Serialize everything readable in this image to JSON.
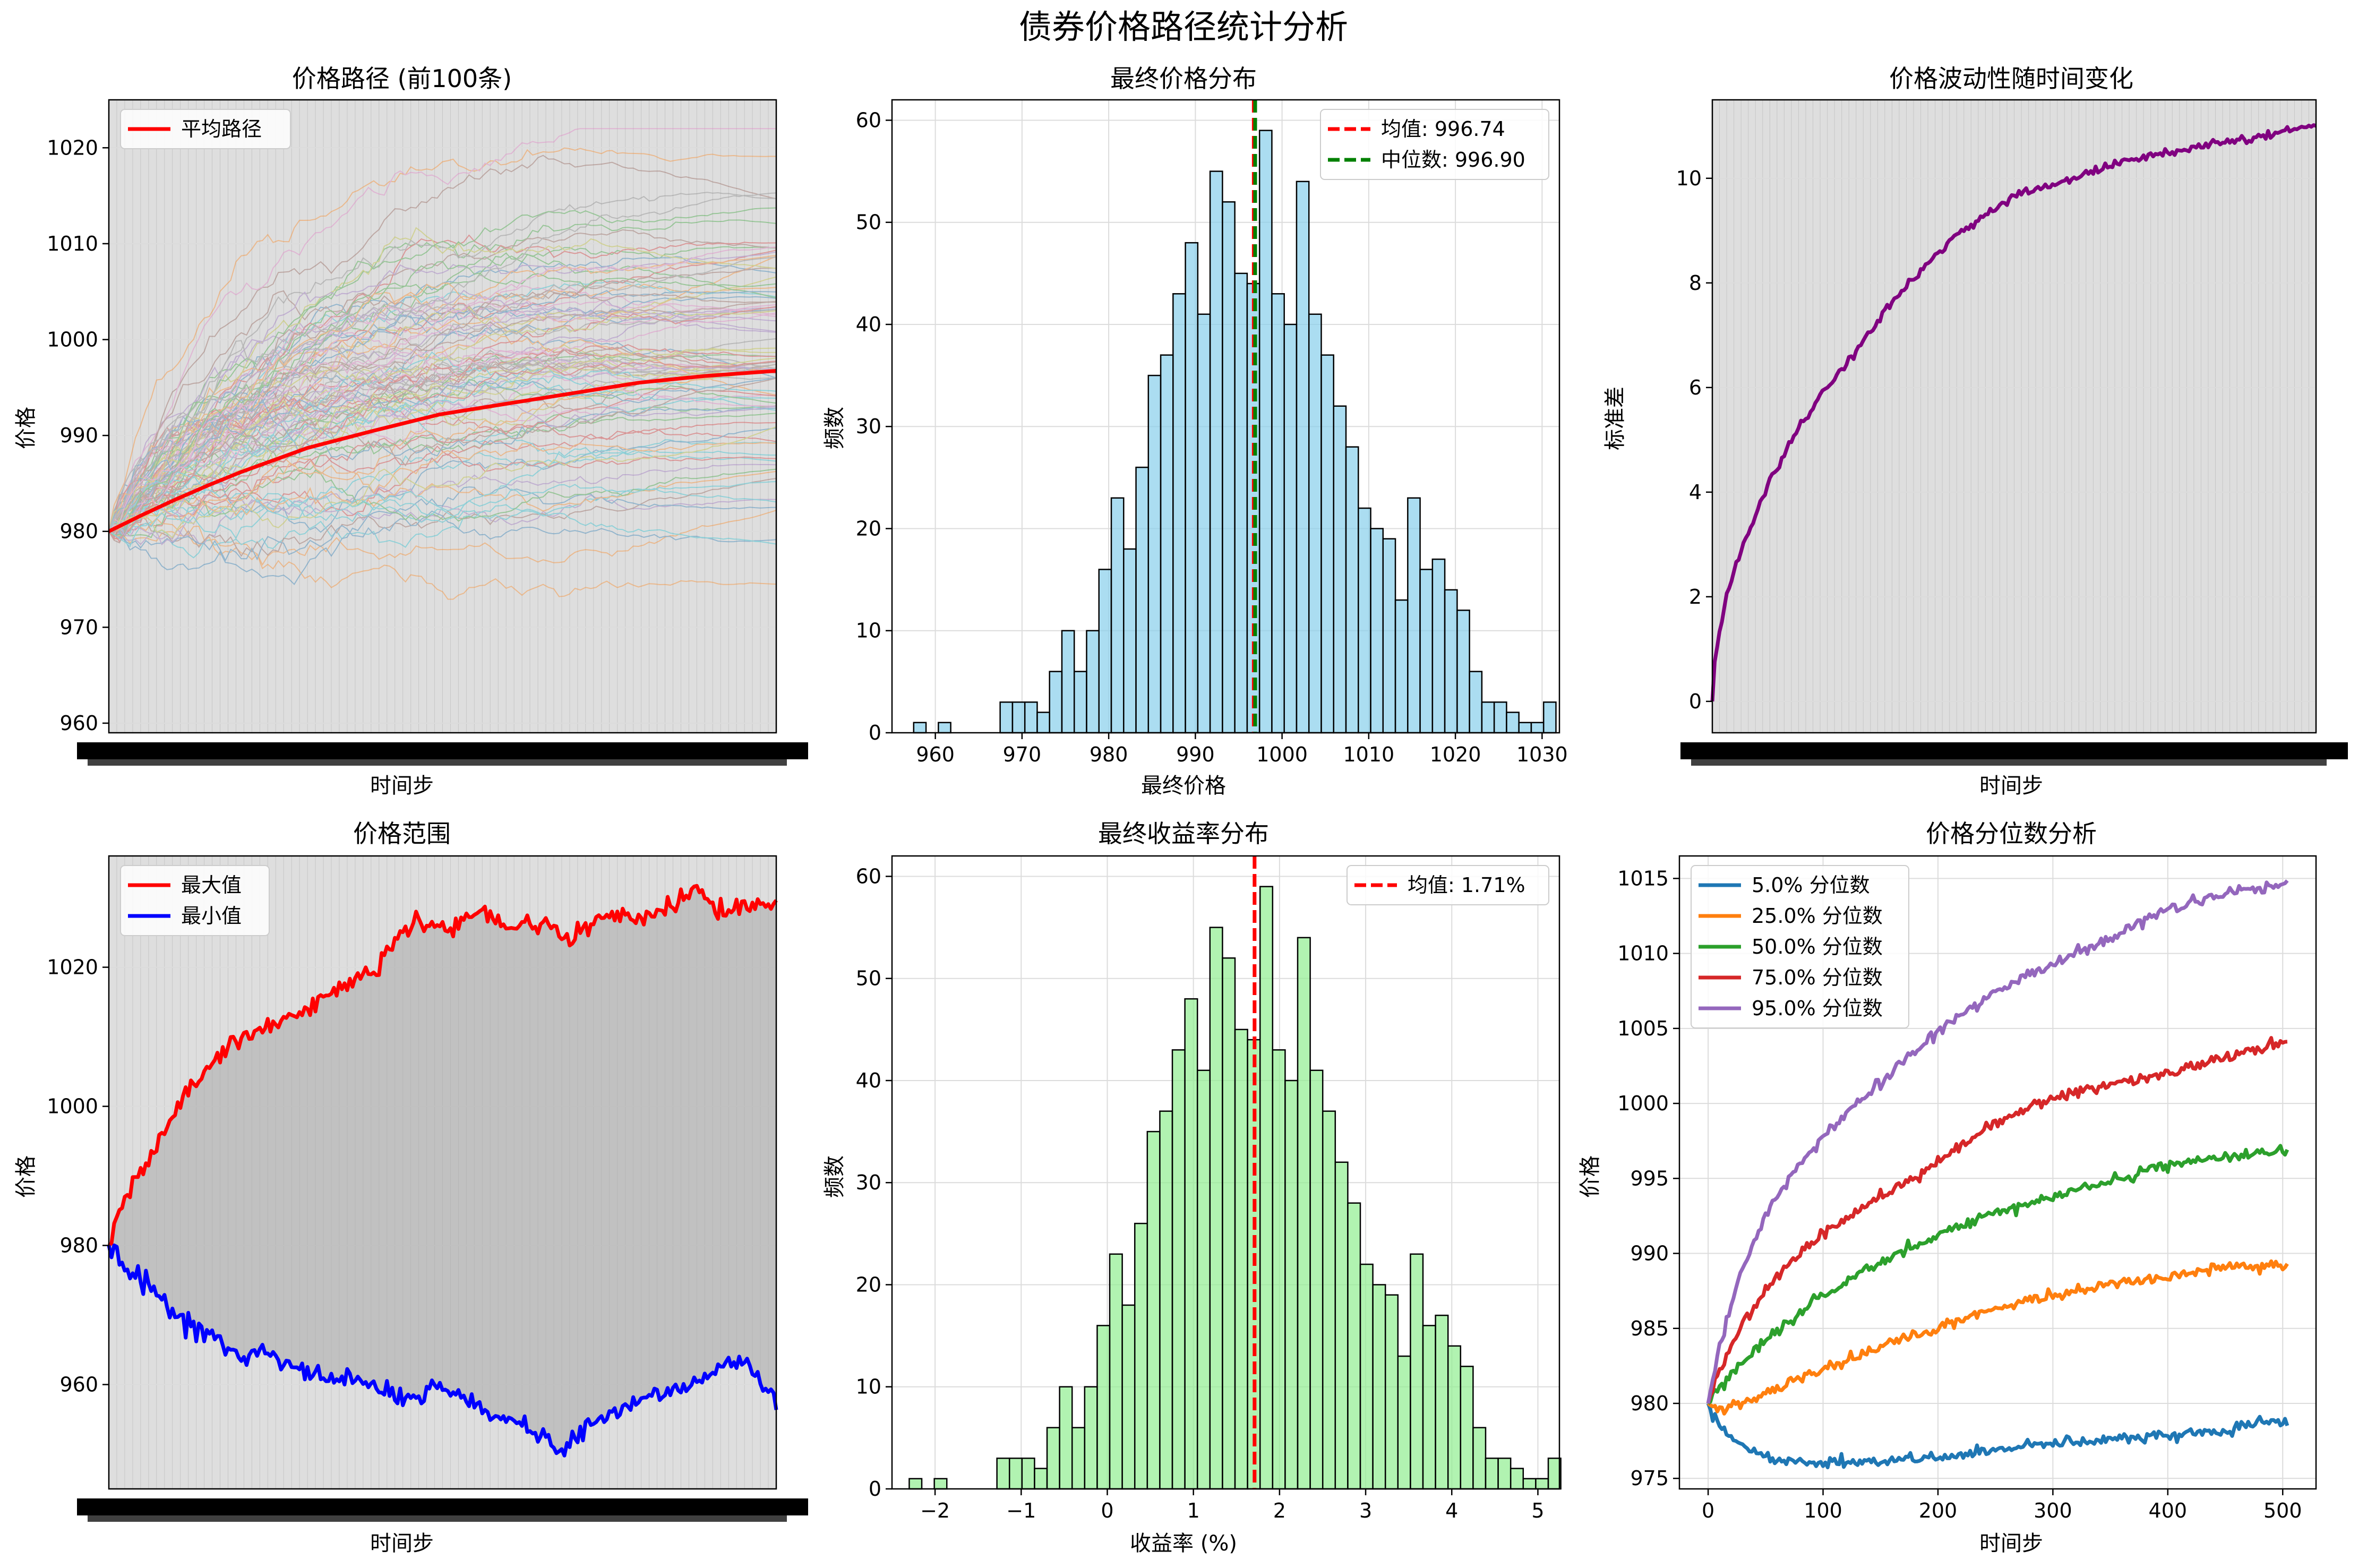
{
  "figure": {
    "title": "债券价格路径统计分析"
  },
  "chart_data": [
    {
      "id": "paths",
      "type": "line",
      "title": "价格路径 (前100条)",
      "xlabel": "时间步",
      "ylabel": "价格",
      "xlim": [
        0,
        504
      ],
      "ylim": [
        959,
        1025
      ],
      "yticks": [
        960,
        970,
        980,
        990,
        1000,
        1010,
        1020
      ],
      "x_tick_labels_overlapping": true,
      "grid": true,
      "legend": "top-left",
      "num_sample_paths": 100,
      "start_price": 980,
      "sample_path_final_range": [
        975,
        1023
      ],
      "sample_path_min_approx": 963,
      "sample_path_max_approx": 1021,
      "series": [
        {
          "name": "平均路径",
          "color": "#ff0000",
          "x": [
            0,
            25,
            50,
            75,
            100,
            150,
            200,
            250,
            300,
            350,
            400,
            450,
            504
          ],
          "values": [
            980,
            981.7,
            983.3,
            984.8,
            986.2,
            988.7,
            990.5,
            992.2,
            993.3,
            994.4,
            995.5,
            996.2,
            996.74
          ]
        }
      ]
    },
    {
      "id": "final-hist",
      "type": "bar",
      "title": "最终价格分布",
      "xlabel": "最终价格",
      "ylabel": "频数",
      "xlim": [
        955,
        1032
      ],
      "ylim": [
        0,
        62
      ],
      "xticks": [
        960,
        970,
        980,
        990,
        1000,
        1010,
        1020,
        1030
      ],
      "yticks": [
        0,
        10,
        20,
        30,
        40,
        50,
        60
      ],
      "grid": true,
      "legend": "top-right",
      "color": "#87ceeb",
      "bins": {
        "start": 957.5,
        "width": 1.425,
        "counts": [
          1,
          0,
          1,
          0,
          0,
          0,
          0,
          3,
          3,
          3,
          2,
          6,
          10,
          6,
          10,
          16,
          23,
          18,
          26,
          35,
          37,
          43,
          48,
          41,
          55,
          52,
          45,
          44,
          59,
          43,
          40,
          54,
          41,
          37,
          32,
          28,
          22,
          20,
          19,
          13,
          23,
          16,
          17,
          14,
          12,
          6,
          3,
          3,
          2,
          1,
          1,
          3
        ]
      },
      "annotations": [
        {
          "name": "均值: 996.74",
          "value": 996.74,
          "color": "#ff0000"
        },
        {
          "name": "中位数: 996.90",
          "value": 996.9,
          "color": "#008000"
        }
      ]
    },
    {
      "id": "volatility",
      "type": "line",
      "title": "价格波动性随时间变化",
      "xlabel": "时间步",
      "ylabel": "标准差",
      "xlim": [
        0,
        504
      ],
      "ylim": [
        -0.6,
        11.5
      ],
      "yticks": [
        0,
        2,
        4,
        6,
        8,
        10
      ],
      "x_tick_labels_overlapping": true,
      "grid": true,
      "series": [
        {
          "name": "",
          "color": "#800080",
          "x": [
            0,
            1,
            5,
            10,
            20,
            30,
            50,
            75,
            100,
            150,
            200,
            250,
            300,
            350,
            400,
            450,
            504
          ],
          "values": [
            0,
            0.55,
            1.25,
            1.8,
            2.6,
            3.25,
            4.3,
            5.35,
            6.1,
            7.65,
            8.85,
            9.65,
            10.0,
            10.35,
            10.6,
            10.75,
            11.05
          ]
        }
      ]
    },
    {
      "id": "range",
      "type": "area",
      "title": "价格范围",
      "xlabel": "时间步",
      "ylabel": "价格",
      "xlim": [
        0,
        504
      ],
      "ylim": [
        945,
        1036
      ],
      "yticks": [
        960,
        980,
        1000,
        1020
      ],
      "x_tick_labels_overlapping": true,
      "grid": true,
      "legend": "top-left",
      "series": [
        {
          "name": "最大值",
          "color": "#ff0000",
          "x": [
            0,
            10,
            30,
            60,
            100,
            150,
            200,
            230,
            260,
            280,
            300,
            330,
            350,
            370,
            400,
            430,
            445,
            460,
            480,
            504
          ],
          "values": [
            980,
            986,
            992,
            1003,
            1010,
            1014,
            1020,
            1027,
            1025,
            1029,
            1026,
            1026,
            1024,
            1027,
            1027,
            1029,
            1031,
            1028,
            1029,
            1029
          ]
        },
        {
          "name": "最小值",
          "color": "#0000ff",
          "x": [
            0,
            10,
            30,
            60,
            85,
            100,
            115,
            130,
            150,
            175,
            200,
            225,
            250,
            270,
            290,
            310,
            330,
            340,
            355,
            380,
            400,
            430,
            460,
            480,
            504
          ],
          "values": [
            980,
            977,
            974,
            969,
            966,
            964,
            965,
            963,
            962,
            961,
            960,
            958,
            960,
            958,
            956,
            955,
            952,
            950,
            953,
            956,
            958,
            959,
            962,
            963,
            958
          ]
        }
      ]
    },
    {
      "id": "return-hist",
      "type": "bar",
      "title": "最终收益率分布",
      "xlabel": "收益率 (%)",
      "ylabel": "频数",
      "xlim": [
        -2.5,
        5.25
      ],
      "ylim": [
        0,
        62
      ],
      "xticks": [
        -2,
        -1,
        0,
        1,
        2,
        3,
        4,
        5
      ],
      "yticks": [
        0,
        10,
        20,
        30,
        40,
        50,
        60
      ],
      "grid": true,
      "legend": "top-right",
      "color": "#90ee90",
      "bins": {
        "start": -2.3,
        "width": 0.1455,
        "counts": [
          1,
          0,
          1,
          0,
          0,
          0,
          0,
          3,
          3,
          3,
          2,
          6,
          10,
          6,
          10,
          16,
          23,
          18,
          26,
          35,
          37,
          43,
          48,
          41,
          55,
          52,
          45,
          44,
          59,
          43,
          40,
          54,
          41,
          37,
          32,
          28,
          22,
          20,
          19,
          13,
          23,
          16,
          17,
          14,
          12,
          6,
          3,
          3,
          2,
          1,
          1,
          3
        ]
      },
      "annotations": [
        {
          "name": "均值: 1.71%",
          "value": 1.71,
          "color": "#ff0000"
        }
      ]
    },
    {
      "id": "quantiles",
      "type": "line",
      "title": "价格分位数分析",
      "xlabel": "时间步",
      "ylabel": "价格",
      "xlim": [
        -25,
        529
      ],
      "ylim": [
        974.3,
        1016.5
      ],
      "xticks": [
        0,
        100,
        200,
        300,
        400,
        500
      ],
      "yticks": [
        975,
        980,
        985,
        990,
        995,
        1000,
        1005,
        1010,
        1015
      ],
      "grid": true,
      "legend": "top-left",
      "x": [
        0,
        10,
        25,
        50,
        75,
        100,
        150,
        200,
        250,
        300,
        350,
        400,
        450,
        504
      ],
      "series": [
        {
          "name": "5.0% 分位数",
          "color": "#1f77b4",
          "values": [
            980,
            978.5,
            977.4,
            976.5,
            976.2,
            976.0,
            976.1,
            976.3,
            977.0,
            977.4,
            977.6,
            977.9,
            978.2,
            978.9
          ]
        },
        {
          "name": "25.0% 分位数",
          "color": "#ff7f0e",
          "values": [
            980,
            979.7,
            979.9,
            980.6,
            981.5,
            982.3,
            983.8,
            985.0,
            986.4,
            987.2,
            987.9,
            988.5,
            989.2,
            989.1
          ]
        },
        {
          "name": "50.0% 分位数",
          "color": "#2ca02c",
          "values": [
            980,
            981.0,
            982.3,
            984.2,
            985.8,
            987.2,
            989.5,
            991.2,
            992.8,
            993.8,
            994.8,
            996.0,
            996.5,
            996.9
          ]
        },
        {
          "name": "75.0% 分位数",
          "color": "#d62728",
          "values": [
            980,
            982.3,
            984.6,
            987.5,
            989.7,
            991.3,
            993.8,
            996.0,
            998.8,
            1000.3,
            1001.3,
            1002.0,
            1003.0,
            1004.2
          ]
        },
        {
          "name": "95.0% 分位数",
          "color": "#9467bd",
          "values": [
            980,
            983.8,
            988.0,
            992.5,
            995.5,
            997.8,
            1001.5,
            1004.8,
            1007.5,
            1009.3,
            1011.0,
            1013.0,
            1014.0,
            1014.7
          ]
        }
      ]
    }
  ]
}
